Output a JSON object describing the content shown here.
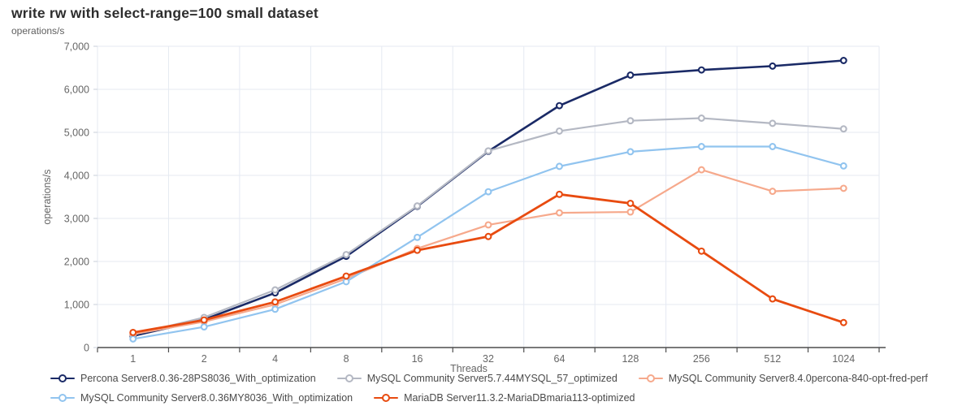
{
  "title": "write rw with select-range=100 small dataset",
  "unit_label": "operations/s",
  "chart_data": {
    "type": "line",
    "title": "write rw with select-range=100 small dataset",
    "xlabel": "Threads",
    "ylabel": "operations/s",
    "x_categories": [
      "1",
      "2",
      "4",
      "8",
      "16",
      "32",
      "64",
      "128",
      "256",
      "512",
      "1024"
    ],
    "ylim": [
      0,
      7000
    ],
    "ytick_step": 1000,
    "ytick_labels": [
      "0",
      "1,000",
      "2,000",
      "3,000",
      "4,000",
      "5,000",
      "6,000",
      "7,000"
    ],
    "grid": true,
    "legend_position": "bottom",
    "marker": "open-circle",
    "series": [
      {
        "name": "Percona Server8.0.36-28PS8036_With_optimization",
        "color": "#1a2a66",
        "line_width": 2.6,
        "values": [
          270,
          650,
          1270,
          2120,
          3280,
          4560,
          5620,
          6330,
          6450,
          6540,
          6670
        ]
      },
      {
        "name": "MySQL Community Server5.7.44MYSQL_57_optimized",
        "color": "#b4b8c3",
        "line_width": 2.2,
        "values": [
          300,
          700,
          1340,
          2160,
          3290,
          4570,
          5030,
          5270,
          5330,
          5210,
          5080
        ]
      },
      {
        "name": "MySQL Community Server8.4.0percona-840-opt-fred-perf",
        "color": "#f6a98c",
        "line_width": 2.2,
        "values": [
          310,
          600,
          1000,
          1600,
          2300,
          2850,
          3130,
          3150,
          4130,
          3630,
          3700
        ]
      },
      {
        "name": "MySQL Community Server8.0.36MY8036_With_optimization",
        "color": "#91c4ef",
        "line_width": 2.2,
        "values": [
          200,
          480,
          890,
          1530,
          2560,
          3620,
          4210,
          4550,
          4670,
          4670,
          4220
        ]
      },
      {
        "name": "MariaDB Server11.3.2-MariaDBmaria113-optimized",
        "color": "#e84b10",
        "line_width": 2.8,
        "values": [
          350,
          640,
          1060,
          1660,
          2260,
          2580,
          3560,
          3350,
          2240,
          1130,
          580
        ]
      }
    ],
    "colors": {
      "grid_line": "#e5eaf2",
      "axis_line": "#4d4d4d",
      "tick_label": "#666666",
      "axis_title": "#666666"
    }
  }
}
